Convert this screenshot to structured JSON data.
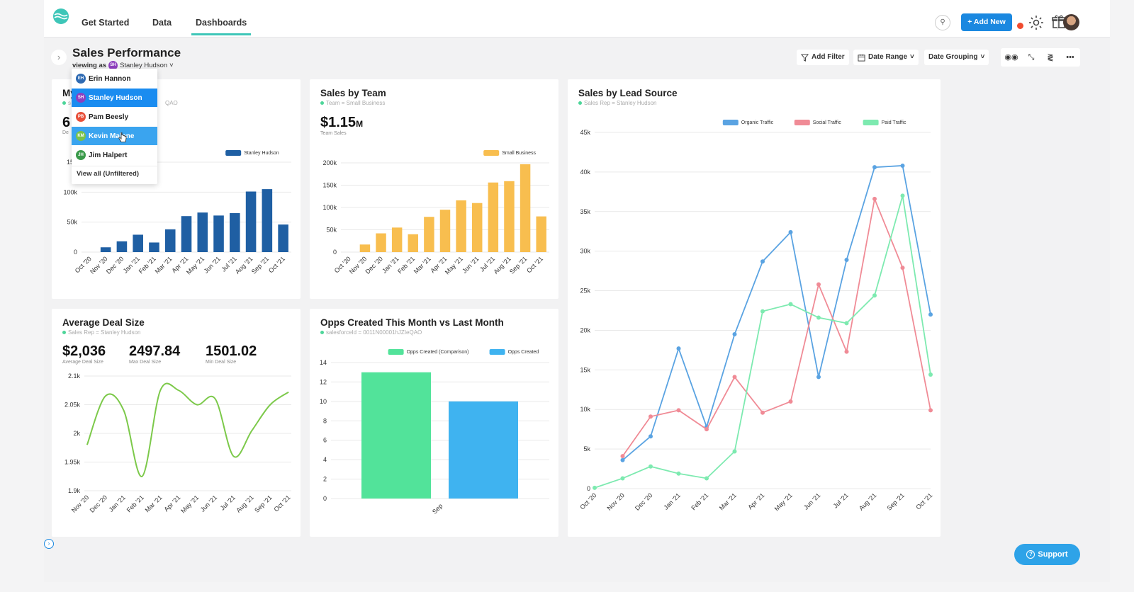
{
  "nav": {
    "links": [
      "Get Started",
      "Data",
      "Dashboards"
    ],
    "active": "Dashboards",
    "add_new": "+ Add New"
  },
  "header": {
    "title": "Sales Performance",
    "viewing_prefix": "viewing as",
    "viewing_initials": "SH",
    "viewing_user": "Stanley Hudson"
  },
  "toolbar": {
    "add_filter": "Add Filter",
    "date_range": "Date Range",
    "date_grouping": "Date Grouping"
  },
  "dropdown": {
    "items": [
      {
        "initials": "EH",
        "name": "Erin Hannon",
        "color": "#2f6bb3"
      },
      {
        "initials": "SH",
        "name": "Stanley Hudson",
        "color": "#8e3fbf"
      },
      {
        "initials": "PB",
        "name": "Pam Beesly",
        "color": "#e8503a"
      },
      {
        "initials": "KM",
        "name": "Kevin Malone",
        "color": "#7ac24a"
      },
      {
        "initials": "JH",
        "name": "Jim Halpert",
        "color": "#3a9a4a"
      }
    ],
    "view_all": "View all (Unfiltered)"
  },
  "cards": {
    "my_sales": {
      "title": "My Sales",
      "visible_title": "My",
      "sub": "s",
      "sub_tail": "QAO",
      "metric_prefix": "6",
      "label_prefix": "De"
    },
    "team": {
      "title": "Sales by Team",
      "sub": "Team = Small Business",
      "metric": "$1.15",
      "metric_unit": "M",
      "metric_label": "Team Sales"
    },
    "lead": {
      "title": "Sales by Lead Source",
      "sub": "Sales Rep = Stanley Hudson"
    },
    "avg": {
      "title": "Average Deal Size",
      "sub": "Sales Rep = Stanley Hudson",
      "metrics": [
        {
          "value": "$2,036",
          "label": "Average Deal Size"
        },
        {
          "value": "2497.84",
          "label": "Max Deal Size"
        },
        {
          "value": "1501.02",
          "label": "Min Deal Size"
        }
      ]
    },
    "opps": {
      "title": "Opps Created This Month vs Last Month",
      "sub": "salesforceId = 0011N00001hJZIeQAO"
    }
  },
  "support": "Support",
  "colors": {
    "accent": "#1a88e0",
    "dark_blue": "#1f5fa3",
    "yellow": "#f8be4f",
    "green_line": "#7cc94a",
    "organic": "#5aa3e2",
    "social": "#f08b96",
    "paid": "#7deab0",
    "opps_comp": "#52e39a",
    "opps_cur": "#3fb3f0"
  },
  "chart_data": [
    {
      "type": "bar",
      "id": "my_sales",
      "categories": [
        "Oct '20",
        "Nov '20",
        "Dec '20",
        "Jan '21",
        "Feb '21",
        "Mar '21",
        "Apr '21",
        "May '21",
        "Jun '21",
        "Jul '21",
        "Aug '21",
        "Sep '21",
        "Oct '21"
      ],
      "series": [
        {
          "name": "Stanley Hudson",
          "values": [
            0,
            8000,
            18000,
            29000,
            16000,
            38000,
            60000,
            66000,
            61000,
            65000,
            101000,
            105000,
            46000
          ]
        }
      ],
      "yticks": [
        "0",
        "50k",
        "100k",
        "150"
      ],
      "ylim": [
        0,
        150000
      ]
    },
    {
      "type": "bar",
      "id": "team",
      "categories": [
        "Oct '20",
        "Nov '20",
        "Dec '20",
        "Jan '21",
        "Feb '21",
        "Mar '21",
        "Apr '21",
        "May '21",
        "Jun '21",
        "Jul '21",
        "Aug '21",
        "Sep '21",
        "Oct '21"
      ],
      "series": [
        {
          "name": "Small Business",
          "values": [
            0,
            17000,
            42000,
            55000,
            40000,
            79000,
            95000,
            116000,
            110000,
            156000,
            159000,
            197000,
            80000
          ]
        }
      ],
      "yticks": [
        "0",
        "50k",
        "100k",
        "150k",
        "200k"
      ],
      "ylim": [
        0,
        200000
      ]
    },
    {
      "type": "line",
      "id": "lead",
      "categories": [
        "Oct '20",
        "Nov '20",
        "Dec '20",
        "Jan '21",
        "Feb '21",
        "Mar '21",
        "Apr '21",
        "May '21",
        "Jun '21",
        "Jul '21",
        "Aug '21",
        "Sep '21",
        "Oct '21"
      ],
      "series": [
        {
          "name": "Organic Traffic",
          "values": [
            null,
            3600,
            6600,
            17700,
            7800,
            19500,
            28700,
            32400,
            14100,
            28900,
            40600,
            40800,
            22000
          ]
        },
        {
          "name": "Social Traffic",
          "values": [
            null,
            4100,
            9100,
            9900,
            7500,
            14100,
            9600,
            11000,
            25800,
            17300,
            36600,
            27900,
            9900
          ]
        },
        {
          "name": "Paid Traffic",
          "values": [
            100,
            1300,
            2800,
            1900,
            1300,
            4700,
            22400,
            23300,
            21600,
            20900,
            24400,
            37000,
            14400
          ]
        }
      ],
      "yticks": [
        "0",
        "5k",
        "10k",
        "15k",
        "20k",
        "25k",
        "30k",
        "35k",
        "40k",
        "45k"
      ],
      "ylim": [
        0,
        45000
      ]
    },
    {
      "type": "line",
      "id": "avg",
      "categories": [
        "Nov '20",
        "Dec '20",
        "Jan '21",
        "Feb '21",
        "Mar '21",
        "Apr '21",
        "May '21",
        "Jun '21",
        "Jul '21",
        "Aug '21",
        "Sep '21",
        "Oct '21"
      ],
      "series": [
        {
          "name": "Average Deal Size",
          "values": [
            1980,
            2065,
            2040,
            1925,
            2075,
            2075,
            2050,
            2060,
            1960,
            2005,
            2050,
            2072
          ]
        }
      ],
      "yticks": [
        "1.9k",
        "1.95k",
        "2k",
        "2.05k",
        "2.1k"
      ],
      "ylim": [
        1900,
        2100
      ]
    },
    {
      "type": "bar",
      "id": "opps",
      "categories": [
        "Sep"
      ],
      "series": [
        {
          "name": "Opps Created (Comparison)",
          "values": [
            13
          ]
        },
        {
          "name": "Opps Created",
          "values": [
            10
          ]
        }
      ],
      "yticks": [
        "0",
        "2",
        "4",
        "6",
        "8",
        "10",
        "12",
        "14"
      ],
      "ylim": [
        0,
        14
      ]
    }
  ]
}
